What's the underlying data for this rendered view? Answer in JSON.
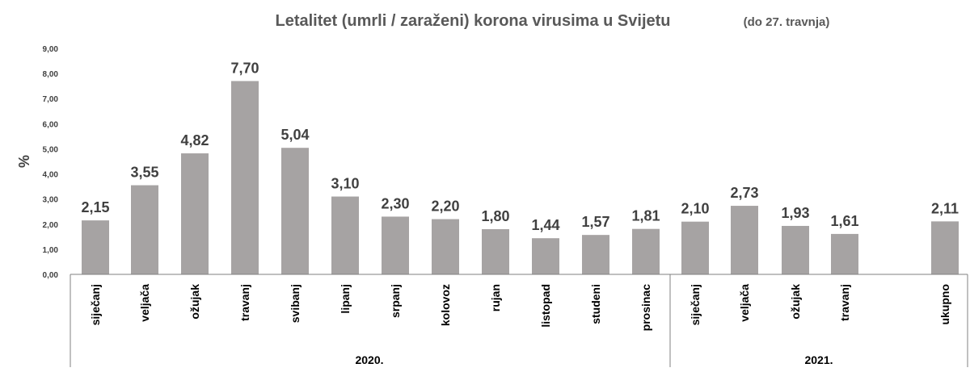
{
  "chart_data": {
    "type": "bar",
    "title": "Letalitet (umrli / zaraženi) korona virusima u Svijetu",
    "subtitle": "(do 27. travnja)",
    "ylabel": "%",
    "ylim": [
      0,
      9
    ],
    "yticks": [
      "0,00",
      "1,00",
      "2,00",
      "3,00",
      "4,00",
      "5,00",
      "6,00",
      "7,00",
      "8,00",
      "9,00"
    ],
    "bar_color": "#a6a3a3",
    "categories": [
      "siječanj",
      "veljača",
      "ožujak",
      "travanj",
      "svibanj",
      "lipanj",
      "srpanj",
      "kolovoz",
      "rujan",
      "listopad",
      "studeni",
      "prosinac",
      "siječanj",
      "veljača",
      "ožujak",
      "travanj",
      "ukupno"
    ],
    "values": [
      2.15,
      3.55,
      4.82,
      7.7,
      5.04,
      3.1,
      2.3,
      2.2,
      1.8,
      1.44,
      1.57,
      1.81,
      2.1,
      2.73,
      1.93,
      1.61,
      2.11
    ],
    "data_labels": [
      "2,15",
      "3,55",
      "4,82",
      "7,70",
      "5,04",
      "3,10",
      "2,30",
      "2,20",
      "1,80",
      "1,44",
      "1,57",
      "1,81",
      "2,10",
      "2,73",
      "1,93",
      "1,61",
      "2,11"
    ],
    "groups": [
      {
        "label": "2020.",
        "from": 0,
        "to": 11
      },
      {
        "label": "2021.",
        "from": 12,
        "to": 16
      }
    ],
    "grid": false,
    "legend": "none"
  }
}
